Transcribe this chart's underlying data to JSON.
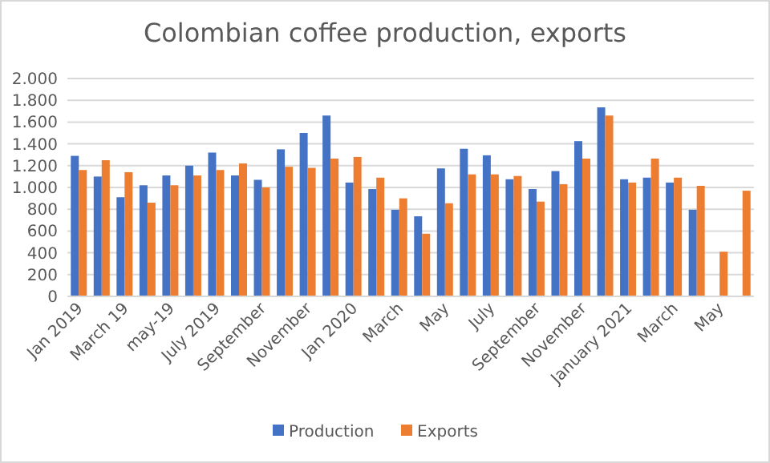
{
  "chart_data": {
    "type": "bar",
    "title": "Colombian coffee production, exports",
    "categories": [
      "Jan 2019",
      null,
      "March 19",
      null,
      "may-19",
      null,
      "July 2019",
      null,
      "September",
      null,
      "November",
      null,
      "Jan 2020",
      null,
      "March",
      null,
      "May",
      null,
      "July",
      null,
      "September",
      null,
      "November",
      null,
      "January 2021",
      null,
      "March",
      null,
      "May",
      null
    ],
    "series": [
      {
        "name": "Production",
        "color": "#4472c4",
        "values": [
          1290,
          1100,
          910,
          1020,
          1110,
          1200,
          1320,
          1110,
          1070,
          1350,
          1500,
          1660,
          1045,
          985,
          795,
          735,
          1175,
          1355,
          1295,
          1075,
          985,
          1150,
          1425,
          1735,
          1075,
          1090,
          1045,
          795,
          null,
          null
        ]
      },
      {
        "name": "Exports",
        "color": "#ed7d31",
        "values": [
          1160,
          1250,
          1140,
          860,
          1020,
          1110,
          1160,
          1220,
          1000,
          1190,
          1180,
          1265,
          1280,
          1090,
          900,
          575,
          855,
          1120,
          1120,
          1105,
          870,
          1030,
          1265,
          1660,
          1045,
          1265,
          1090,
          1015,
          410,
          970
        ]
      }
    ],
    "ylim": [
      0,
      2000
    ],
    "yticks": [
      {
        "value": 0,
        "label": "0"
      },
      {
        "value": 200,
        "label": "200"
      },
      {
        "value": 400,
        "label": "400"
      },
      {
        "value": 600,
        "label": "600"
      },
      {
        "value": 800,
        "label": "800"
      },
      {
        "value": 1000,
        "label": "1.000"
      },
      {
        "value": 1200,
        "label": "1.200"
      },
      {
        "value": 1400,
        "label": "1.400"
      },
      {
        "value": 1600,
        "label": "1.600"
      },
      {
        "value": 1800,
        "label": "1.800"
      },
      {
        "value": 2000,
        "label": "2.000"
      }
    ],
    "grid": "y",
    "legend": "bottom"
  }
}
